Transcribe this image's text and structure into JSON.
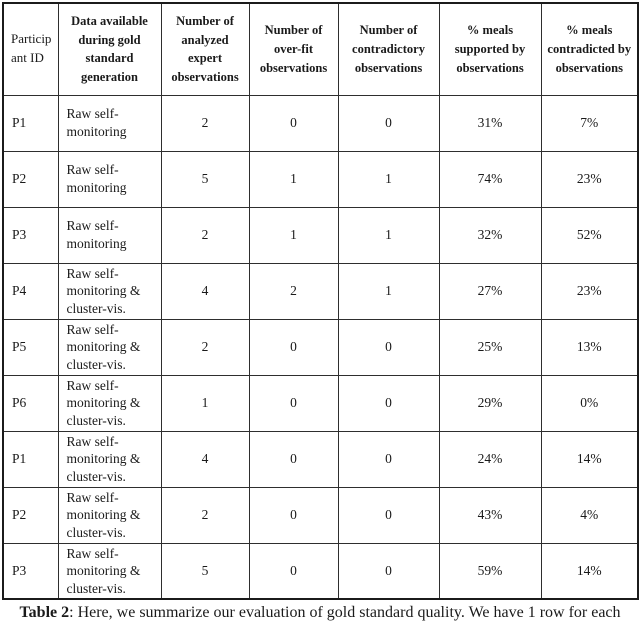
{
  "table": {
    "header": {
      "cells": [
        {
          "key": "participant-id",
          "lines": [
            "Particip",
            "ant ID"
          ],
          "bold": false
        },
        {
          "key": "data-available",
          "lines": [
            "Data available",
            "during gold",
            "standard",
            "generation"
          ],
          "bold": true
        },
        {
          "key": "analyzed-observations",
          "lines": [
            "Number of",
            "analyzed",
            "expert",
            "observations"
          ],
          "bold": true
        },
        {
          "key": "overfit-observations",
          "lines": [
            "Number of",
            "over-fit",
            "observations"
          ],
          "bold": true
        },
        {
          "key": "contradictory-observations",
          "lines": [
            "Number of",
            "contradictory",
            "observations"
          ],
          "bold": true
        },
        {
          "key": "meals-supported",
          "lines": [
            "% meals",
            "supported by",
            "observations"
          ],
          "bold": true
        },
        {
          "key": "meals-contradicted",
          "lines": [
            "% meals",
            "contradicted by",
            "observations"
          ],
          "bold": true
        }
      ]
    },
    "column_keys": [
      "participant-id",
      "data-available",
      "analyzed-observations",
      "overfit-observations",
      "contradictory-observations",
      "meals-supported",
      "meals-contradicted"
    ],
    "rows": [
      [
        "P1",
        "Raw self-monitoring",
        "2",
        "0",
        "0",
        "31%",
        "7%"
      ],
      [
        "P2",
        "Raw self-monitoring",
        "5",
        "1",
        "1",
        "74%",
        "23%"
      ],
      [
        "P3",
        "Raw self-monitoring",
        "2",
        "1",
        "1",
        "32%",
        "52%"
      ],
      [
        "P4",
        "Raw self-monitoring & cluster-vis.",
        "4",
        "2",
        "1",
        "27%",
        "23%"
      ],
      [
        "P5",
        "Raw self-monitoring & cluster-vis.",
        "2",
        "0",
        "0",
        "25%",
        "13%"
      ],
      [
        "P6",
        "Raw self-monitoring & cluster-vis.",
        "1",
        "0",
        "0",
        "29%",
        "0%"
      ],
      [
        "P1",
        "Raw self-monitoring & cluster-vis.",
        "4",
        "0",
        "0",
        "24%",
        "14%"
      ],
      [
        "P2",
        "Raw self-monitoring & cluster-vis.",
        "2",
        "0",
        "0",
        "43%",
        "4%"
      ],
      [
        "P3",
        "Raw self-monitoring & cluster-vis.",
        "5",
        "0",
        "0",
        "59%",
        "14%"
      ]
    ]
  },
  "caption": {
    "label": "Table 2",
    "text": ": Here, we summarize our evaluation of gold standard quality. We have 1 row for each"
  }
}
